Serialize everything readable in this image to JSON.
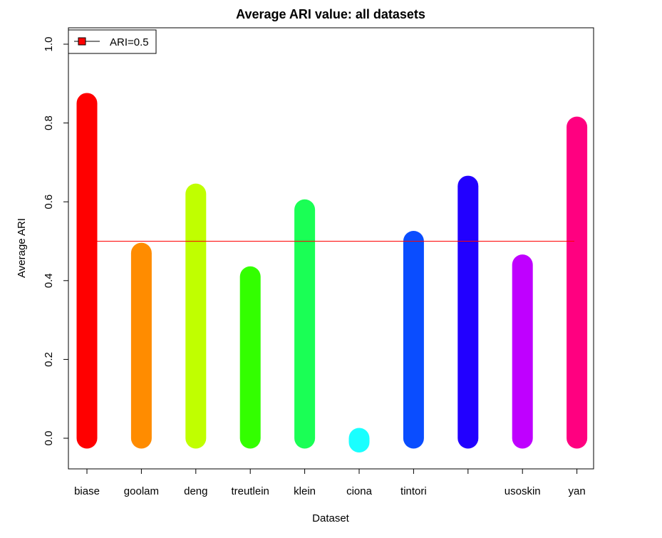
{
  "chart_data": {
    "type": "bar",
    "title": "Average ARI value: all datasets",
    "xlabel": "Dataset",
    "ylabel": "Average ARI",
    "ylim": [
      -0.07,
      1.03
    ],
    "yticks": [
      "0.0",
      "0.2",
      "0.4",
      "0.6",
      "0.8",
      "1.0"
    ],
    "grid": false,
    "categories": [
      "biase",
      "goolam",
      "deng",
      "treutlein",
      "klein",
      "ciona",
      "tintori",
      "",
      "usoskin",
      "yan"
    ],
    "values": [
      0.85,
      0.47,
      0.62,
      0.41,
      0.58,
      -0.01,
      0.5,
      0.64,
      0.44,
      0.79
    ],
    "colors": [
      "#FF0000",
      "#FF8C00",
      "#C0FF00",
      "#33FF00",
      "#1AFF55",
      "#1AFFFF",
      "#0A4DFF",
      "#2200FF",
      "#BF00FF",
      "#FF0080"
    ],
    "reference_line": {
      "value": 0.5,
      "color": "#FF0000",
      "label": "ARI=0.5"
    },
    "legend": {
      "position": "top-left",
      "entries": [
        {
          "label": "ARI=0.5",
          "color": "#FF0000"
        }
      ]
    }
  }
}
